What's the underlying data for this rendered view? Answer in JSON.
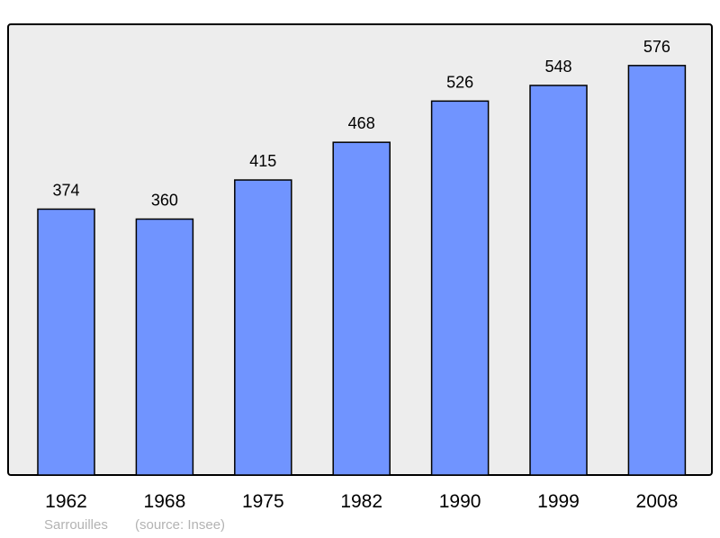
{
  "chart_data": {
    "type": "bar",
    "categories": [
      "1962",
      "1968",
      "1975",
      "1982",
      "1990",
      "1999",
      "2008"
    ],
    "values": [
      374,
      360,
      415,
      468,
      526,
      548,
      576
    ],
    "ylim": [
      0,
      634
    ],
    "grid": false,
    "bar_color": "#7094ff",
    "background_color": "#ededed",
    "title": "",
    "xlabel": "",
    "ylabel": ""
  },
  "footer": {
    "place": "Sarrouilles",
    "source": "(source: Insee)"
  }
}
